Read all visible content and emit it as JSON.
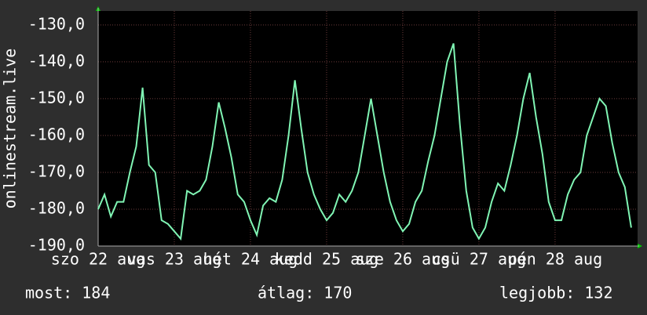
{
  "chart_data": {
    "type": "line",
    "y_label": "onlinestream.live",
    "x": [
      0,
      2,
      4,
      6,
      8,
      10,
      12,
      14,
      16,
      18,
      20,
      22,
      24,
      26,
      28,
      30,
      32,
      34,
      36,
      38,
      40,
      42,
      44,
      46,
      48,
      50,
      52,
      54,
      56,
      58,
      60,
      62,
      64,
      66,
      68,
      70,
      72,
      74,
      76,
      78,
      80,
      82,
      84,
      86,
      88,
      90,
      92,
      94,
      96,
      98,
      100,
      102,
      104,
      106,
      108,
      110,
      112,
      114,
      116,
      118,
      120,
      122,
      124,
      126,
      128,
      130,
      132,
      134,
      136,
      138,
      140,
      142,
      144,
      146,
      148,
      150,
      152,
      154,
      156,
      158,
      160,
      162,
      164,
      166,
      168
    ],
    "series": [
      {
        "color": "#80f5b4",
        "values": [
          -180,
          -176,
          -182,
          -178,
          -178,
          -170,
          -163,
          -147,
          -168,
          -170,
          -183,
          -184,
          -186,
          -188,
          -175,
          -176,
          -175,
          -172,
          -163,
          -151,
          -158,
          -166,
          -176,
          -178,
          -183,
          -187,
          -179,
          -177,
          -178,
          -172,
          -160,
          -145,
          -158,
          -170,
          -176,
          -180,
          -183,
          -181,
          -176,
          -178,
          -175,
          -170,
          -160,
          -150,
          -160,
          -170,
          -178,
          -183,
          -186,
          -184,
          -178,
          -175,
          -167,
          -160,
          -150,
          -140,
          -135,
          -157,
          -175,
          -185,
          -188,
          -185,
          -178,
          -173,
          -175,
          -168,
          -160,
          -150,
          -143,
          -155,
          -165,
          -178,
          -183,
          -183,
          -176,
          -172,
          -170,
          -160,
          -155,
          -150,
          -152,
          -162,
          -170,
          -174,
          -185
        ]
      }
    ],
    "xlim": [
      0,
      170
    ],
    "xticks": [
      {
        "value": 0,
        "label": "szo 22 aug"
      },
      {
        "value": 24,
        "label": "vas 23 aug"
      },
      {
        "value": 48,
        "label": "hét 24 aug"
      },
      {
        "value": 72,
        "label": "kedd 25 aug"
      },
      {
        "value": 96,
        "label": "sze 26 aug"
      },
      {
        "value": 120,
        "label": "csü 27 aug"
      },
      {
        "value": 144,
        "label": "pén 28 aug"
      }
    ],
    "ylim": [
      -190,
      -126.2
    ],
    "yticks": [
      {
        "value": -190,
        "label": "-190,0"
      },
      {
        "value": -180,
        "label": "-180,0"
      },
      {
        "value": -170,
        "label": "-170,0"
      },
      {
        "value": -160,
        "label": "-160,0"
      },
      {
        "value": -150,
        "label": "-150,0"
      },
      {
        "value": -140,
        "label": "-140,0"
      },
      {
        "value": -130,
        "label": "-130,0"
      }
    ],
    "grid": true,
    "stats": [
      "most: 184",
      "átlag: 170",
      "legjobb: 132"
    ]
  }
}
